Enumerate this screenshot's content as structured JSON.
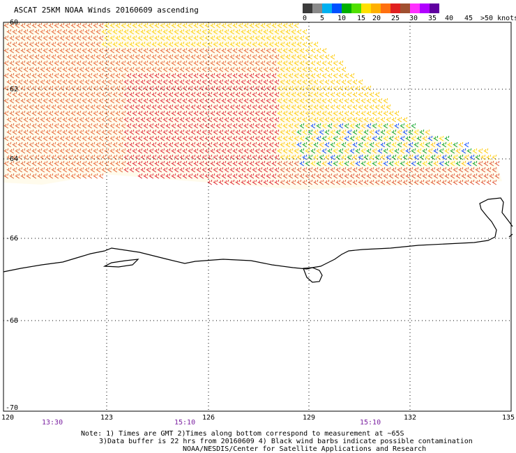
{
  "title": "ASCAT 25KM NOAA Winds 20160609 ascending",
  "legend": {
    "colors": [
      "#3c3c3c",
      "#8a8a8a",
      "#00b0f0",
      "#0050ff",
      "#00b000",
      "#50e000",
      "#ffe000",
      "#ffb000",
      "#ff7010",
      "#e02020",
      "#a05030",
      "#ff30ff",
      "#b000ff",
      "#6000a0"
    ],
    "labels": [
      "0",
      "5",
      "10",
      "15",
      "20",
      "25",
      "30",
      "35",
      "40",
      "45",
      ">50 knots"
    ]
  },
  "lat_labels": [
    "-60",
    "-62",
    "-64",
    "-66",
    "-68",
    "-70"
  ],
  "lon_labels": [
    "120",
    "123",
    "126",
    "129",
    "132",
    "135"
  ],
  "time_labels": [
    "13:30",
    "15:10",
    "15:10"
  ],
  "notes": {
    "line1": "Note: 1) Times are GMT 2)Times along bottom correspond to measurement at ~65S",
    "line2": "3)Data buffer is 22 hrs from 20160609 4) Black wind barbs indicate possible contamination",
    "line3": "NOAA/NESDIS/Center for Satellite Applications and Research"
  }
}
